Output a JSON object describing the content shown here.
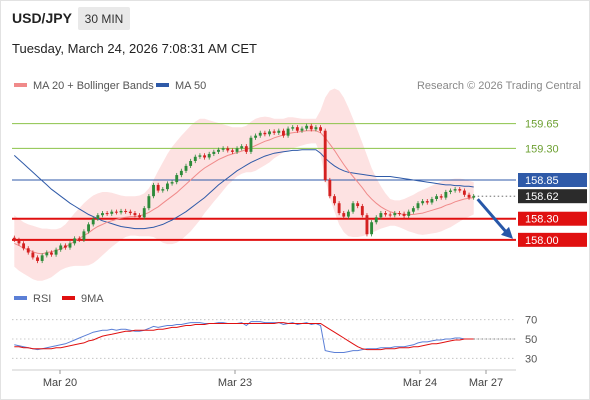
{
  "header": {
    "symbol": "USD/JPY",
    "timeframe": "30 MIN",
    "datetime": "Tuesday, March 24, 2026 7:08:31 AM CET"
  },
  "legend": {
    "items": [
      {
        "label": "MA 20 + Bollinger Bands",
        "color": "#f08a8a"
      },
      {
        "label": "MA 50",
        "color": "#2f5aa8"
      }
    ],
    "copyright": "Research © 2026 Trading Central"
  },
  "rsi_legend": {
    "items": [
      {
        "label": "RSI",
        "color": "#5b7fd6"
      },
      {
        "label": "9MA",
        "color": "#e01010"
      }
    ]
  },
  "colors": {
    "up": "#2e8b3a",
    "down": "#d42020",
    "resistance": "#8bc34a",
    "support": "#e01010",
    "current": "#2f5aa8",
    "band_fill": "#fde2e2",
    "arrow": "#2757a8"
  },
  "chart_data": [
    {
      "type": "candlestick",
      "title": "USD/JPY",
      "x_tick_labels": [
        "Mar 20",
        "Mar 23",
        "Mar 24",
        "Mar 27"
      ],
      "ylim": [
        157.6,
        160.1
      ],
      "levels": [
        {
          "label": "159.65",
          "value": 159.65,
          "kind": "resistance"
        },
        {
          "label": "159.30",
          "value": 159.3,
          "kind": "resistance"
        },
        {
          "label": "158.85",
          "value": 158.85,
          "kind": "current"
        },
        {
          "label": "158.62",
          "value": 158.62,
          "kind": "last"
        },
        {
          "label": "158.30",
          "value": 158.3,
          "kind": "support"
        },
        {
          "label": "158.00",
          "value": 158.0,
          "kind": "support"
        }
      ],
      "close": [
        158.0,
        157.95,
        157.88,
        157.82,
        157.75,
        157.7,
        157.78,
        157.82,
        157.79,
        157.86,
        157.92,
        157.89,
        157.95,
        158.02,
        158.0,
        158.12,
        158.22,
        158.3,
        158.35,
        158.38,
        158.37,
        158.4,
        158.39,
        158.41,
        158.4,
        158.38,
        158.35,
        158.32,
        158.45,
        158.62,
        158.78,
        158.7,
        158.72,
        158.8,
        158.82,
        158.92,
        158.98,
        159.05,
        159.12,
        159.18,
        159.2,
        159.17,
        159.22,
        159.25,
        159.28,
        159.3,
        159.27,
        159.25,
        159.3,
        159.33,
        159.25,
        159.45,
        159.48,
        159.52,
        159.5,
        159.54,
        159.52,
        159.55,
        159.48,
        159.58,
        159.6,
        159.55,
        159.58,
        159.62,
        159.57,
        159.6,
        159.55,
        158.85,
        158.62,
        158.52,
        158.38,
        158.33,
        158.4,
        158.52,
        158.48,
        158.35,
        158.08,
        158.25,
        158.32,
        158.38,
        158.36,
        158.35,
        158.38,
        158.37,
        158.34,
        158.4,
        158.45,
        158.52,
        158.55,
        158.53,
        158.58,
        158.62,
        158.6,
        158.68,
        158.7,
        158.72,
        158.7,
        158.64,
        158.6,
        158.62
      ],
      "ma20": [
        157.95,
        157.92,
        157.88,
        157.86,
        157.83,
        157.81,
        157.8,
        157.82,
        157.83,
        157.85,
        157.87,
        157.9,
        157.94,
        157.98,
        158.02,
        158.06,
        158.1,
        158.15,
        158.19,
        158.22,
        158.25,
        158.27,
        158.29,
        158.31,
        158.32,
        158.33,
        158.33,
        158.34,
        158.36,
        158.39,
        158.43,
        158.47,
        158.52,
        158.57,
        158.62,
        158.67,
        158.73,
        158.79,
        158.85,
        158.91,
        158.97,
        159.02,
        159.06,
        159.1,
        159.14,
        159.17,
        159.2,
        159.22,
        159.24,
        159.26,
        159.28,
        159.31,
        159.34,
        159.37,
        159.4,
        159.42,
        159.45,
        159.47,
        159.49,
        159.51,
        159.52,
        159.53,
        159.54,
        159.55,
        159.55,
        159.55,
        159.52,
        159.45,
        159.36,
        159.27,
        159.17,
        159.07,
        158.98,
        158.9,
        158.82,
        158.74,
        158.65,
        158.58,
        158.52,
        158.47,
        158.43,
        158.4,
        158.38,
        158.37,
        158.36,
        158.36,
        158.36,
        158.37,
        158.38,
        158.4,
        158.42,
        158.44,
        158.46,
        158.49,
        158.51,
        158.54,
        158.56,
        158.58,
        158.59,
        158.6
      ],
      "bb_upper": [
        158.35,
        158.3,
        158.25,
        158.22,
        158.2,
        158.18,
        158.16,
        158.16,
        158.15,
        158.15,
        158.17,
        158.22,
        158.3,
        158.38,
        158.45,
        158.52,
        158.58,
        158.63,
        158.66,
        158.68,
        158.68,
        158.67,
        158.65,
        158.63,
        158.62,
        158.62,
        158.62,
        158.63,
        158.66,
        158.73,
        158.85,
        158.98,
        159.1,
        159.22,
        159.32,
        159.4,
        159.48,
        159.55,
        159.62,
        159.68,
        159.72,
        159.72,
        159.7,
        159.68,
        159.66,
        159.64,
        159.62,
        159.6,
        159.6,
        159.6,
        159.62,
        159.68,
        159.72,
        159.74,
        159.75,
        159.74,
        159.72,
        159.72,
        159.72,
        159.74,
        159.74,
        159.73,
        159.72,
        159.72,
        159.72,
        159.72,
        159.84,
        160.02,
        160.12,
        160.15,
        160.12,
        160.02,
        159.88,
        159.72,
        159.55,
        159.38,
        159.2,
        159.02,
        158.88,
        158.76,
        158.66,
        158.58,
        158.56,
        158.56,
        158.58,
        158.61,
        158.64,
        158.68,
        158.71,
        158.74,
        158.77,
        158.8,
        158.83,
        158.85,
        158.86,
        158.87,
        158.87,
        158.86,
        158.84,
        158.82
      ],
      "bb_lower": [
        157.62,
        157.56,
        157.52,
        157.48,
        157.44,
        157.42,
        157.42,
        157.44,
        157.47,
        157.52,
        157.57,
        157.6,
        157.62,
        157.63,
        157.63,
        157.63,
        157.64,
        157.67,
        157.72,
        157.78,
        157.84,
        157.9,
        157.95,
        158.0,
        158.04,
        158.06,
        158.06,
        158.05,
        158.05,
        158.05,
        158.04,
        158.0,
        157.96,
        157.94,
        157.94,
        157.96,
        158.0,
        158.06,
        158.12,
        158.2,
        158.28,
        158.38,
        158.46,
        158.54,
        158.62,
        158.7,
        158.78,
        158.84,
        158.9,
        158.94,
        158.96,
        158.96,
        158.98,
        159.02,
        159.06,
        159.1,
        159.16,
        159.2,
        159.24,
        159.27,
        159.3,
        159.32,
        159.34,
        159.36,
        159.37,
        159.37,
        159.2,
        158.88,
        158.6,
        158.4,
        158.22,
        158.11,
        158.05,
        158.04,
        158.04,
        158.05,
        158.07,
        158.1,
        158.13,
        158.16,
        158.18,
        158.2,
        158.2,
        158.18,
        158.15,
        158.12,
        158.1,
        158.08,
        158.07,
        158.08,
        158.09,
        158.1,
        158.12,
        158.15,
        158.18,
        158.22,
        158.26,
        158.3,
        158.33,
        158.36
      ],
      "ma50": [
        159.2,
        159.14,
        159.08,
        159.02,
        158.96,
        158.9,
        158.84,
        158.78,
        158.72,
        158.67,
        158.62,
        158.57,
        158.52,
        158.48,
        158.44,
        158.4,
        158.36,
        158.33,
        158.3,
        158.27,
        158.25,
        158.23,
        158.21,
        158.19,
        158.18,
        158.17,
        158.16,
        158.16,
        158.16,
        158.17,
        158.18,
        158.2,
        158.22,
        158.25,
        158.28,
        158.32,
        158.36,
        158.4,
        158.45,
        158.5,
        158.55,
        158.6,
        158.66,
        158.72,
        158.78,
        158.83,
        158.88,
        158.93,
        158.98,
        159.02,
        159.06,
        159.1,
        159.13,
        159.16,
        159.19,
        159.21,
        159.23,
        159.24,
        159.25,
        159.26,
        159.27,
        159.27,
        159.28,
        159.28,
        159.28,
        159.28,
        159.23,
        159.16,
        159.1,
        159.05,
        159.01,
        158.98,
        158.96,
        158.95,
        158.94,
        158.93,
        158.92,
        158.91,
        158.9,
        158.9,
        158.9,
        158.9,
        158.89,
        158.88,
        158.87,
        158.86,
        158.85,
        158.84,
        158.83,
        158.82,
        158.81,
        158.8,
        158.79,
        158.78,
        158.78,
        158.77,
        158.77,
        158.76,
        158.76,
        158.75
      ]
    },
    {
      "type": "line",
      "title": "RSI",
      "ylim": [
        20,
        80
      ],
      "y_ticks": [
        30,
        50,
        70
      ],
      "series": [
        {
          "name": "RSI",
          "values": [
            44,
            43,
            42,
            41,
            40,
            39,
            40,
            41,
            42,
            43,
            44,
            45,
            47,
            49,
            51,
            53,
            55,
            57,
            58,
            59,
            59,
            60,
            59,
            60,
            60,
            59,
            58,
            58,
            59,
            61,
            63,
            62,
            63,
            64,
            64,
            65,
            65,
            66,
            67,
            67,
            67,
            66,
            66,
            66,
            67,
            67,
            66,
            66,
            66,
            67,
            64,
            68,
            68,
            68,
            67,
            67,
            67,
            67,
            65,
            66,
            67,
            65,
            66,
            67,
            65,
            66,
            64,
            38,
            37,
            36,
            36,
            36,
            37,
            38,
            38,
            39,
            40,
            40,
            40,
            41,
            41,
            41,
            42,
            42,
            42,
            43,
            44,
            46,
            47,
            47,
            48,
            49,
            49,
            50,
            50,
            51,
            51,
            50,
            50,
            50
          ]
        },
        {
          "name": "9MA",
          "values": [
            42,
            42,
            41,
            41,
            40,
            40,
            40,
            40,
            40,
            41,
            41,
            42,
            43,
            44,
            45,
            46,
            48,
            49,
            51,
            53,
            54,
            55,
            56,
            57,
            58,
            58,
            59,
            59,
            59,
            59,
            59,
            60,
            60,
            61,
            62,
            62,
            63,
            64,
            64,
            65,
            65,
            65,
            66,
            66,
            66,
            66,
            66,
            66,
            66,
            66,
            66,
            66,
            66,
            66,
            66,
            66,
            66,
            67,
            67,
            66,
            66,
            66,
            66,
            66,
            66,
            66,
            66,
            63,
            60,
            57,
            54,
            51,
            48,
            45,
            42,
            40,
            39,
            39,
            39,
            39,
            40,
            40,
            40,
            41,
            41,
            41,
            42,
            42,
            43,
            44,
            45,
            45,
            46,
            47,
            48,
            49,
            49,
            50,
            50,
            50
          ]
        }
      ]
    }
  ]
}
